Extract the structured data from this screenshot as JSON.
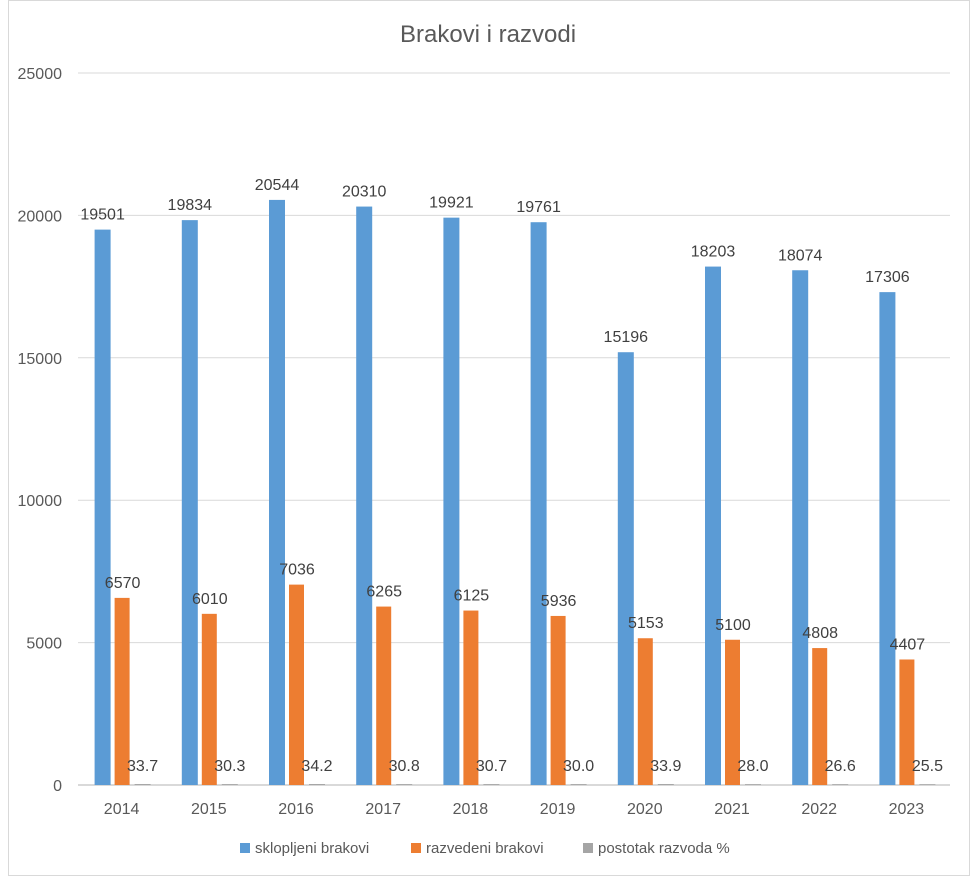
{
  "chart_data": {
    "type": "bar",
    "title": "Brakovi i razvodi",
    "xlabel": "",
    "ylabel": "",
    "ylim": [
      0,
      25000
    ],
    "yticks": [
      "0",
      "5000",
      "10000",
      "15000",
      "20000",
      "25000"
    ],
    "grid": true,
    "legend_position": "bottom",
    "categories": [
      "2014",
      "2015",
      "2016",
      "2017",
      "2018",
      "2019",
      "2020",
      "2021",
      "2022",
      "2023"
    ],
    "series": [
      {
        "name": "sklopljeni brakovi",
        "color": "#5b9bd5",
        "values": [
          19501,
          19834,
          20544,
          20310,
          19921,
          19761,
          15196,
          18203,
          18074,
          17306
        ],
        "labels": [
          "19501",
          "19834",
          "20544",
          "20310",
          "19921",
          "19761",
          "15196",
          "18203",
          "18074",
          "17306"
        ]
      },
      {
        "name": "razvedeni brakovi",
        "color": "#ed7d31",
        "values": [
          6570,
          6010,
          7036,
          6265,
          6125,
          5936,
          5153,
          5100,
          4808,
          4407
        ],
        "labels": [
          "6570",
          "6010",
          "7036",
          "6265",
          "6125",
          "5936",
          "5153",
          "5100",
          "4808",
          "4407"
        ]
      },
      {
        "name": "postotak razvoda %",
        "color": "#a5a5a5",
        "values": [
          33.7,
          30.3,
          34.2,
          30.8,
          30.7,
          30.0,
          33.9,
          28.0,
          26.6,
          25.5
        ],
        "labels": [
          "33.7",
          "30.3",
          "34.2",
          "30.8",
          "30.7",
          "30.0",
          "33.9",
          "28.0",
          "26.6",
          "25.5"
        ]
      }
    ]
  }
}
